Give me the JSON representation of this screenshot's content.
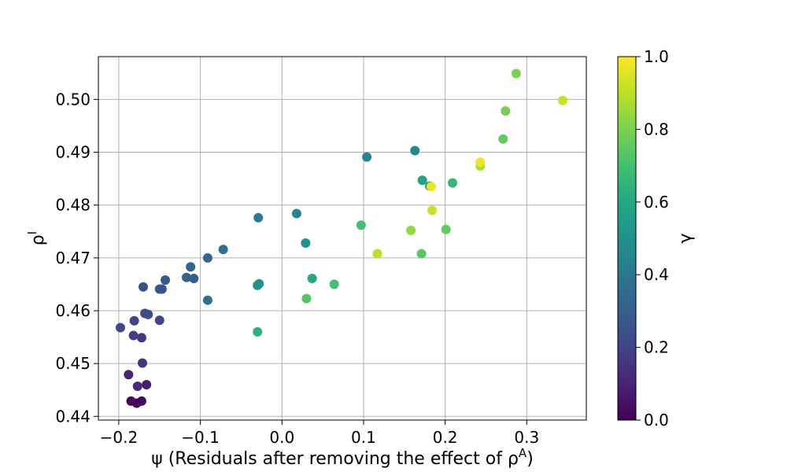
{
  "chart_data": {
    "type": "scatter",
    "xlabel": "ψ (Residuals after removing the effect of ρ^A)",
    "ylabel": "ρ^I",
    "colorbar_label": "γ",
    "xlim": [
      -0.225,
      0.373
    ],
    "ylim": [
      0.4393,
      0.5081
    ],
    "grid": true,
    "colormap": "viridis",
    "x_ticks": [
      -0.2,
      -0.1,
      0.0,
      0.1,
      0.2,
      0.3
    ],
    "x_tick_labels": [
      "−0.2",
      "−0.1",
      "0.0",
      "0.1",
      "0.2",
      "0.3"
    ],
    "y_ticks": [
      0.44,
      0.45,
      0.46,
      0.47,
      0.48,
      0.49,
      0.5
    ],
    "y_tick_labels": [
      "0.44",
      "0.45",
      "0.46",
      "0.47",
      "0.48",
      "0.49",
      "0.50"
    ],
    "colorbar_ticks": [
      0.0,
      0.2,
      0.4,
      0.6,
      0.8,
      1.0
    ],
    "colorbar_tick_labels": [
      "0.0",
      "0.2",
      "0.4",
      "0.6",
      "0.8",
      "1.0"
    ],
    "points": [
      {
        "x": 0.287,
        "y": 0.5049,
        "c": 0.8
      },
      {
        "x": 0.344,
        "y": 0.4998,
        "c": 0.92
      },
      {
        "x": 0.274,
        "y": 0.4978,
        "c": 0.79
      },
      {
        "x": 0.271,
        "y": 0.4925,
        "c": 0.76
      },
      {
        "x": 0.243,
        "y": 0.4874,
        "c": 0.88
      },
      {
        "x": 0.243,
        "y": 0.4881,
        "c": 0.98
      },
      {
        "x": 0.163,
        "y": 0.4903,
        "c": 0.46
      },
      {
        "x": 0.104,
        "y": 0.4891,
        "c": 0.45
      },
      {
        "x": 0.172,
        "y": 0.4847,
        "c": 0.58
      },
      {
        "x": 0.209,
        "y": 0.4842,
        "c": 0.66
      },
      {
        "x": 0.181,
        "y": 0.4836,
        "c": 0.6
      },
      {
        "x": 0.183,
        "y": 0.4835,
        "c": 0.98
      },
      {
        "x": 0.184,
        "y": 0.479,
        "c": 0.92
      },
      {
        "x": 0.018,
        "y": 0.4784,
        "c": 0.45
      },
      {
        "x": -0.029,
        "y": 0.4776,
        "c": 0.41
      },
      {
        "x": 0.097,
        "y": 0.4762,
        "c": 0.7
      },
      {
        "x": 0.158,
        "y": 0.4752,
        "c": 0.84
      },
      {
        "x": 0.201,
        "y": 0.4754,
        "c": 0.76
      },
      {
        "x": 0.029,
        "y": 0.4728,
        "c": 0.51
      },
      {
        "x": 0.117,
        "y": 0.4708,
        "c": 0.9
      },
      {
        "x": 0.171,
        "y": 0.4708,
        "c": 0.74
      },
      {
        "x": -0.072,
        "y": 0.4716,
        "c": 0.37
      },
      {
        "x": -0.091,
        "y": 0.47,
        "c": 0.33
      },
      {
        "x": -0.112,
        "y": 0.4683,
        "c": 0.32
      },
      {
        "x": -0.117,
        "y": 0.4663,
        "c": 0.31
      },
      {
        "x": -0.108,
        "y": 0.4661,
        "c": 0.3
      },
      {
        "x": 0.037,
        "y": 0.4661,
        "c": 0.6
      },
      {
        "x": 0.064,
        "y": 0.465,
        "c": 0.7
      },
      {
        "x": -0.028,
        "y": 0.4651,
        "c": 0.51
      },
      {
        "x": -0.03,
        "y": 0.4648,
        "c": 0.5
      },
      {
        "x": -0.143,
        "y": 0.4658,
        "c": 0.27
      },
      {
        "x": -0.17,
        "y": 0.4645,
        "c": 0.24
      },
      {
        "x": -0.147,
        "y": 0.4641,
        "c": 0.25
      },
      {
        "x": -0.15,
        "y": 0.4641,
        "c": 0.26
      },
      {
        "x": 0.03,
        "y": 0.4623,
        "c": 0.73
      },
      {
        "x": -0.091,
        "y": 0.462,
        "c": 0.37
      },
      {
        "x": -0.168,
        "y": 0.4595,
        "c": 0.22
      },
      {
        "x": -0.164,
        "y": 0.4593,
        "c": 0.24
      },
      {
        "x": -0.15,
        "y": 0.4582,
        "c": 0.2
      },
      {
        "x": -0.181,
        "y": 0.4581,
        "c": 0.2
      },
      {
        "x": -0.198,
        "y": 0.4568,
        "c": 0.23
      },
      {
        "x": -0.03,
        "y": 0.456,
        "c": 0.64
      },
      {
        "x": -0.182,
        "y": 0.4553,
        "c": 0.18
      },
      {
        "x": -0.172,
        "y": 0.4549,
        "c": 0.17
      },
      {
        "x": -0.171,
        "y": 0.4501,
        "c": 0.15
      },
      {
        "x": -0.188,
        "y": 0.4479,
        "c": 0.1
      },
      {
        "x": -0.166,
        "y": 0.446,
        "c": 0.08
      },
      {
        "x": -0.177,
        "y": 0.4457,
        "c": 0.12
      },
      {
        "x": -0.185,
        "y": 0.4429,
        "c": 0.02
      },
      {
        "x": -0.172,
        "y": 0.4429,
        "c": 0.03
      },
      {
        "x": -0.178,
        "y": 0.4425,
        "c": 0.01
      }
    ]
  }
}
